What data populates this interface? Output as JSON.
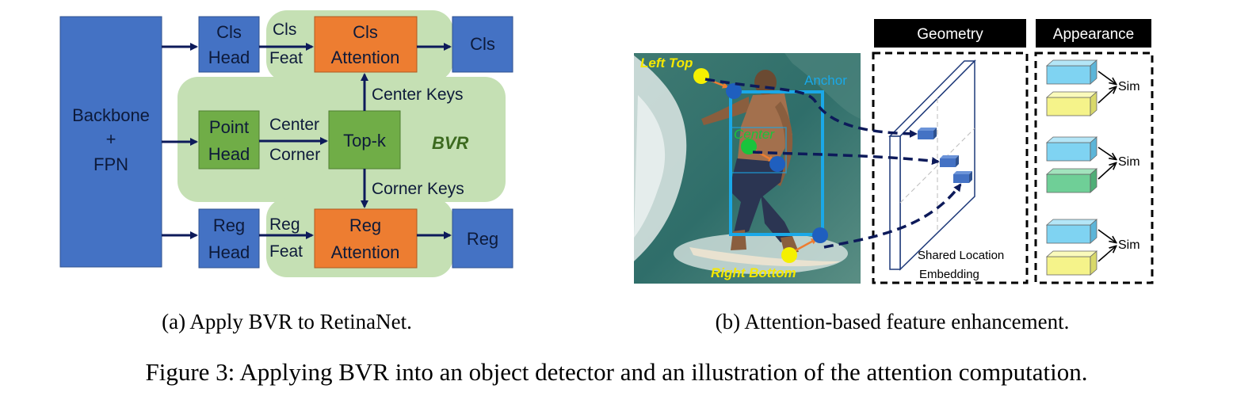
{
  "panel_a": {
    "backbone_line1": "Backbone",
    "backbone_line2": "+",
    "backbone_line3": "FPN",
    "cls_head_line1": "Cls",
    "cls_head_line2": "Head",
    "point_head_line1": "Point",
    "point_head_line2": "Head",
    "reg_head_line1": "Reg",
    "reg_head_line2": "Head",
    "cls_attention_line1": "Cls",
    "cls_attention_line2": "Attention",
    "reg_attention_line1": "Reg",
    "reg_attention_line2": "Attention",
    "topk": "Top-k",
    "cls_out": "Cls",
    "reg_out": "Reg",
    "cls_feat_line1": "Cls",
    "cls_feat_line2": "Feat",
    "reg_feat_line1": "Reg",
    "reg_feat_line2": "Feat",
    "center_label": "Center",
    "corner_label": "Corner",
    "center_keys": "Center Keys",
    "corner_keys": "Corner Keys",
    "bvr": "BVR",
    "caption": "(a) Apply BVR to RetinaNet."
  },
  "panel_b": {
    "geometry_header": "Geometry",
    "appearance_header": "Appearance",
    "left_top": "Left Top",
    "center": "Center",
    "anchor": "Anchor",
    "right_bottom": "Right Bottom",
    "embedding_line1": "Shared Location",
    "embedding_line2": "Embedding",
    "sim_1": "Sim",
    "sim_2": "Sim",
    "sim_3": "Sim",
    "caption": "(b) Attention-based feature enhancement."
  },
  "figure_caption": "Figure 3: Applying BVR into an object detector and an illustration of the attention computation.",
  "colors": {
    "blue_box": "#4472c4",
    "green_box": "#70ad47",
    "orange_box": "#ed7d31",
    "bvr_bg": "#c5e0b4",
    "arrow": "#0d1a5a",
    "anchor": "#1aa8e8",
    "keypoint_yellow": "#f5f000",
    "keypoint_green": "#19c43c",
    "keypoint_blue": "#1f5fbf"
  }
}
